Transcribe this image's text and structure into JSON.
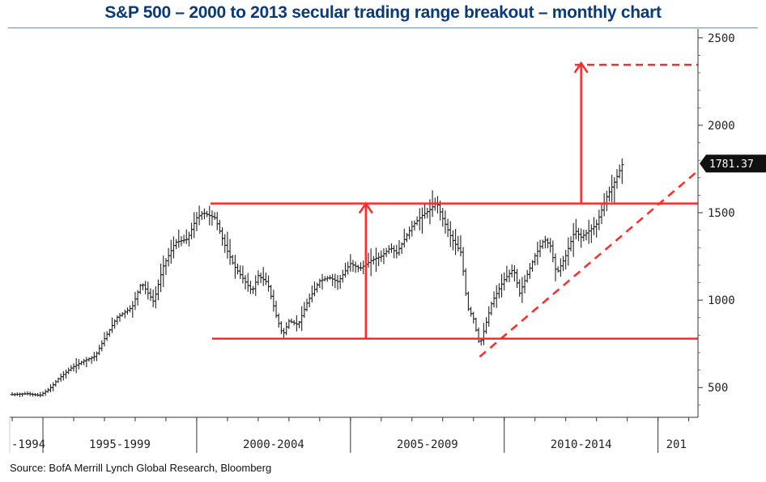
{
  "title": "S&P 500 – 2000 to 2013 secular trading range breakout – monthly chart",
  "source": "Source: BofA Merrill Lynch Global Research, Bloomberg",
  "chart_data": {
    "type": "ohlc",
    "title": "S&P 500 – 2000 to 2013 secular trading range breakout – monthly chart",
    "ylim": [
      330,
      2550
    ],
    "y_ticks": [
      500,
      1000,
      1500,
      2000,
      2500
    ],
    "x_range": [
      1993.92,
      2016.3
    ],
    "x_tick_labels": [
      "-1994",
      "1995-1999",
      "2000-2004",
      "2005-2009",
      "2010-2014",
      "201"
    ],
    "x_label_centers": [
      1994.4,
      1997.5,
      2002.5,
      2007.5,
      2012.5,
      2016.0
    ],
    "x_dividers": [
      1995,
      2000,
      2005,
      2010,
      2015
    ],
    "last_value_label": "1781.37",
    "last_value": 1781.37,
    "series_color": "#222222",
    "annotation_color": "#ff2a2a",
    "price_path": [
      [
        1994.0,
        460
      ],
      [
        1994.5,
        465
      ],
      [
        1994.9,
        455
      ],
      [
        1995.2,
        490
      ],
      [
        1995.5,
        550
      ],
      [
        1995.9,
        610
      ],
      [
        1996.3,
        650
      ],
      [
        1996.7,
        680
      ],
      [
        1997.0,
        780
      ],
      [
        1997.4,
        900
      ],
      [
        1997.9,
        960
      ],
      [
        1998.2,
        1100
      ],
      [
        1998.6,
        990
      ],
      [
        1998.9,
        1190
      ],
      [
        1999.3,
        1330
      ],
      [
        1999.7,
        1350
      ],
      [
        1999.99,
        1469
      ],
      [
        2000.2,
        1500
      ],
      [
        2000.6,
        1470
      ],
      [
        2000.9,
        1320
      ],
      [
        2001.2,
        1200
      ],
      [
        2001.6,
        1100
      ],
      [
        2001.8,
        1050
      ],
      [
        2002.0,
        1140
      ],
      [
        2002.3,
        1100
      ],
      [
        2002.6,
        900
      ],
      [
        2002.8,
        800
      ],
      [
        2003.0,
        880
      ],
      [
        2003.3,
        860
      ],
      [
        2003.6,
        990
      ],
      [
        2003.99,
        1110
      ],
      [
        2004.3,
        1130
      ],
      [
        2004.6,
        1105
      ],
      [
        2004.99,
        1210
      ],
      [
        2005.3,
        1180
      ],
      [
        2005.7,
        1230
      ],
      [
        2005.99,
        1250
      ],
      [
        2006.3,
        1300
      ],
      [
        2006.5,
        1270
      ],
      [
        2006.99,
        1420
      ],
      [
        2007.3,
        1480
      ],
      [
        2007.6,
        1520
      ],
      [
        2007.8,
        1560
      ],
      [
        2007.99,
        1470
      ],
      [
        2008.3,
        1350
      ],
      [
        2008.6,
        1270
      ],
      [
        2008.8,
        960
      ],
      [
        2008.99,
        900
      ],
      [
        2009.2,
        740
      ],
      [
        2009.3,
        800
      ],
      [
        2009.6,
        990
      ],
      [
        2009.99,
        1115
      ],
      [
        2010.3,
        1180
      ],
      [
        2010.5,
        1040
      ],
      [
        2010.99,
        1250
      ],
      [
        2011.3,
        1350
      ],
      [
        2011.5,
        1310
      ],
      [
        2011.7,
        1150
      ],
      [
        2011.99,
        1250
      ],
      [
        2012.3,
        1400
      ],
      [
        2012.5,
        1360
      ],
      [
        2012.99,
        1430
      ],
      [
        2013.3,
        1580
      ],
      [
        2013.6,
        1680
      ],
      [
        2013.85,
        1781
      ]
    ],
    "annotations": {
      "resistance_line": {
        "y": 1553,
        "x": [
          2000.45,
          2016.3
        ]
      },
      "support_line": {
        "y": 780,
        "x": [
          2000.5,
          2016.3
        ]
      },
      "range_height_arrow": {
        "x": 2005.5,
        "from": 780,
        "to": 1553
      },
      "breakout_arrow": {
        "x": 2012.5,
        "from": 1553,
        "to": 2356
      },
      "target_line": {
        "y": 2346,
        "x": [
          2012.3,
          2016.3
        ]
      },
      "uptrend_line": {
        "from": [
          2009.2,
          676
        ],
        "to": [
          2016.3,
          1740
        ]
      }
    }
  }
}
